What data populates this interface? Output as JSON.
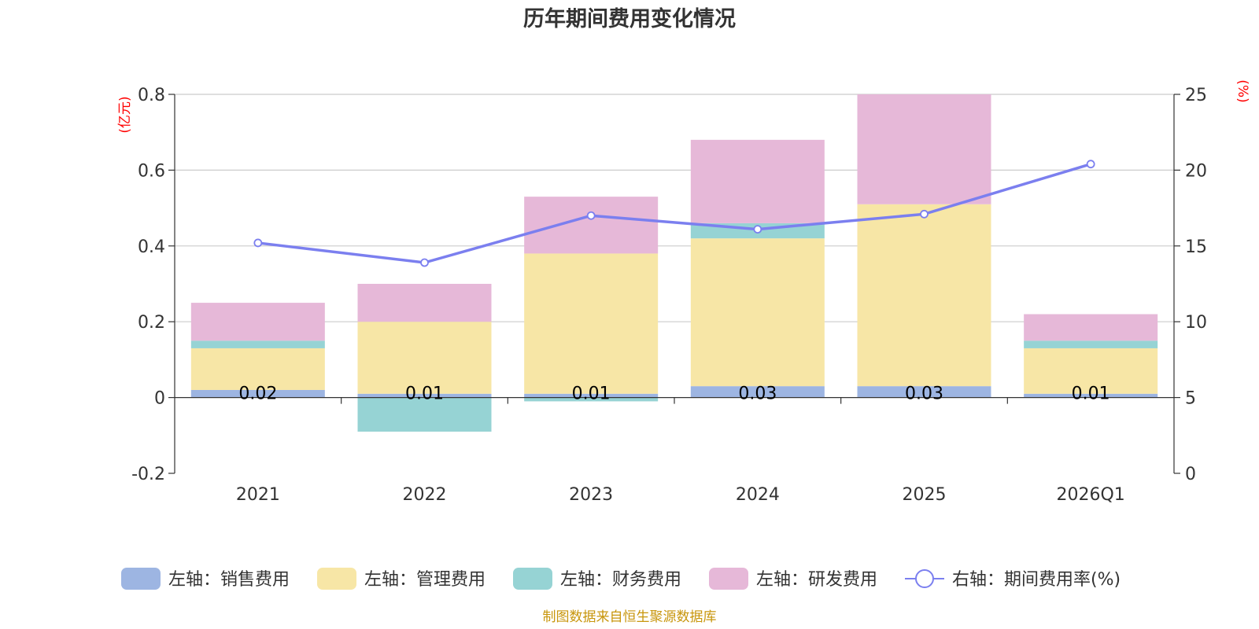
{
  "chart_data": {
    "type": "bar",
    "title": "历年期间费用变化情况",
    "categories": [
      "2021",
      "2022",
      "2023",
      "2024",
      "2025",
      "2026Q1"
    ],
    "series": [
      {
        "name": "左轴：销售费用",
        "axis": "left",
        "color": "#9db5e2",
        "values": [
          0.02,
          0.01,
          0.01,
          0.03,
          0.03,
          0.01
        ]
      },
      {
        "name": "左轴：管理费用",
        "axis": "left",
        "color": "#f7e6a6",
        "values": [
          0.11,
          0.19,
          0.37,
          0.39,
          0.48,
          0.12
        ]
      },
      {
        "name": "左轴：财务费用",
        "axis": "left",
        "color": "#96d3d4",
        "values": [
          0.02,
          -0.09,
          -0.01,
          0.04,
          0.0,
          0.02
        ]
      },
      {
        "name": "左轴：研发费用",
        "axis": "left",
        "color": "#e6b8d8",
        "values": [
          0.1,
          0.1,
          0.15,
          0.22,
          0.29,
          0.07
        ]
      },
      {
        "name": "右轴：期间费用率(%)",
        "axis": "right",
        "type": "line",
        "color": "#7b7fef",
        "values": [
          15.2,
          13.9,
          17.0,
          16.1,
          17.1,
          20.4
        ]
      }
    ],
    "data_labels": [
      "0.02",
      "0.01",
      "0.01",
      "0.03",
      "0.03",
      "0.01"
    ],
    "left_axis": {
      "unit": "(亿元)",
      "ylim": [
        -0.2,
        0.8
      ],
      "ticks": [
        -0.2,
        0,
        0.2,
        0.4,
        0.6,
        0.8
      ],
      "tick_labels": [
        "-0.2",
        "0",
        "0.2",
        "0.4",
        "0.6",
        "0.8"
      ]
    },
    "right_axis": {
      "unit": "(%)",
      "ylim": [
        0,
        25
      ],
      "ticks": [
        0,
        5,
        10,
        15,
        20,
        25
      ],
      "tick_labels": [
        "0",
        "5",
        "10",
        "15",
        "20",
        "25"
      ]
    },
    "legend_position": "bottom",
    "grid": true
  },
  "source_note": "制图数据来自恒生聚源数据库"
}
